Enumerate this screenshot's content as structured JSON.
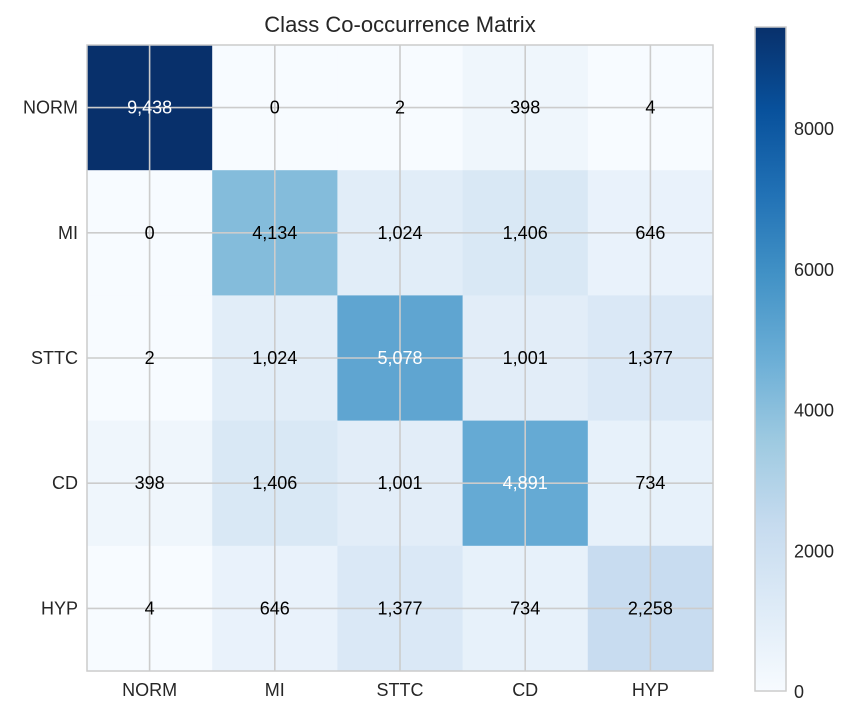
{
  "chart_data": {
    "type": "heatmap",
    "title": "Class Co-occurrence Matrix",
    "x_categories": [
      "NORM",
      "MI",
      "STTC",
      "CD",
      "HYP"
    ],
    "y_categories": [
      "NORM",
      "MI",
      "STTC",
      "CD",
      "HYP"
    ],
    "values": [
      [
        9438,
        0,
        2,
        398,
        4
      ],
      [
        0,
        4134,
        1024,
        1406,
        646
      ],
      [
        2,
        1024,
        5078,
        1001,
        1377
      ],
      [
        398,
        1406,
        1001,
        4891,
        734
      ],
      [
        4,
        646,
        1377,
        734,
        2258
      ]
    ],
    "cell_labels": [
      [
        "9,438",
        "0",
        "2",
        "398",
        "4"
      ],
      [
        "0",
        "4,134",
        "1,024",
        "1,406",
        "646"
      ],
      [
        "2",
        "1,024",
        "5,078",
        "1,001",
        "1,377"
      ],
      [
        "398",
        "1,406",
        "1,001",
        "4,891",
        "734"
      ],
      [
        "4",
        "646",
        "1,377",
        "734",
        "2,258"
      ]
    ],
    "colormap": "Blues",
    "vmin": 0,
    "vmax": 9438,
    "colorbar_ticks": [
      0,
      2000,
      4000,
      6000,
      8000
    ],
    "grid": true
  }
}
